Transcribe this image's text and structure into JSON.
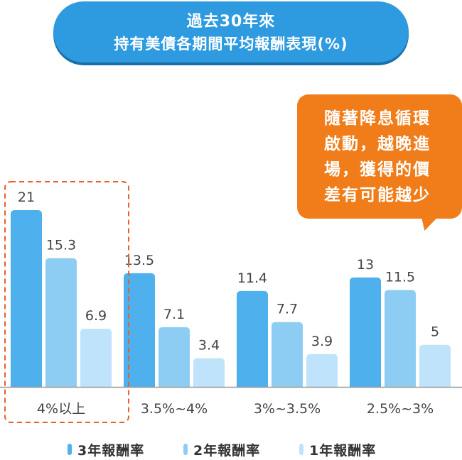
{
  "title": {
    "line1": "過去30年來",
    "line2": "持有美債各期間平均報酬表現(%)"
  },
  "callout": {
    "lines": [
      "隨著降息循環",
      "啟動，越晚進",
      "場，獲得的價",
      "差有可能越少"
    ]
  },
  "colors": {
    "title_bg": "#2e9be0",
    "callout_bg": "#f07d1a",
    "series_3y": "#4eb0ec",
    "series_2y": "#8ecdf3",
    "series_1y": "#bfe3fa",
    "highlight_border": "#e8602a"
  },
  "chart_data": {
    "type": "bar",
    "categories": [
      "4%以上",
      "3.5%~4%",
      "3%~3.5%",
      "2.5%~3%"
    ],
    "series": [
      {
        "name": "3年報酬率",
        "values": [
          21,
          13.5,
          11.4,
          13
        ]
      },
      {
        "name": "2年報酬率",
        "values": [
          15.3,
          7.1,
          7.7,
          11.5
        ]
      },
      {
        "name": "1年報酬率",
        "values": [
          6.9,
          3.4,
          3.9,
          5
        ]
      }
    ],
    "value_labels": [
      [
        "21",
        "15.3",
        "6.9"
      ],
      [
        "13.5",
        "7.1",
        "3.4"
      ],
      [
        "11.4",
        "7.7",
        "3.9"
      ],
      [
        "13",
        "11.5",
        "5"
      ]
    ],
    "highlighted_category": "4%以上",
    "title": "",
    "xlabel": "",
    "ylabel": "",
    "ylim": [
      0,
      21
    ],
    "grid": false,
    "legend_position": "bottom"
  },
  "legend": [
    {
      "label": "3年報酬率",
      "color": "#4eb0ec"
    },
    {
      "label": "2年報酬率",
      "color": "#8ecdf3"
    },
    {
      "label": "1年報酬率",
      "color": "#bfe3fa"
    }
  ]
}
